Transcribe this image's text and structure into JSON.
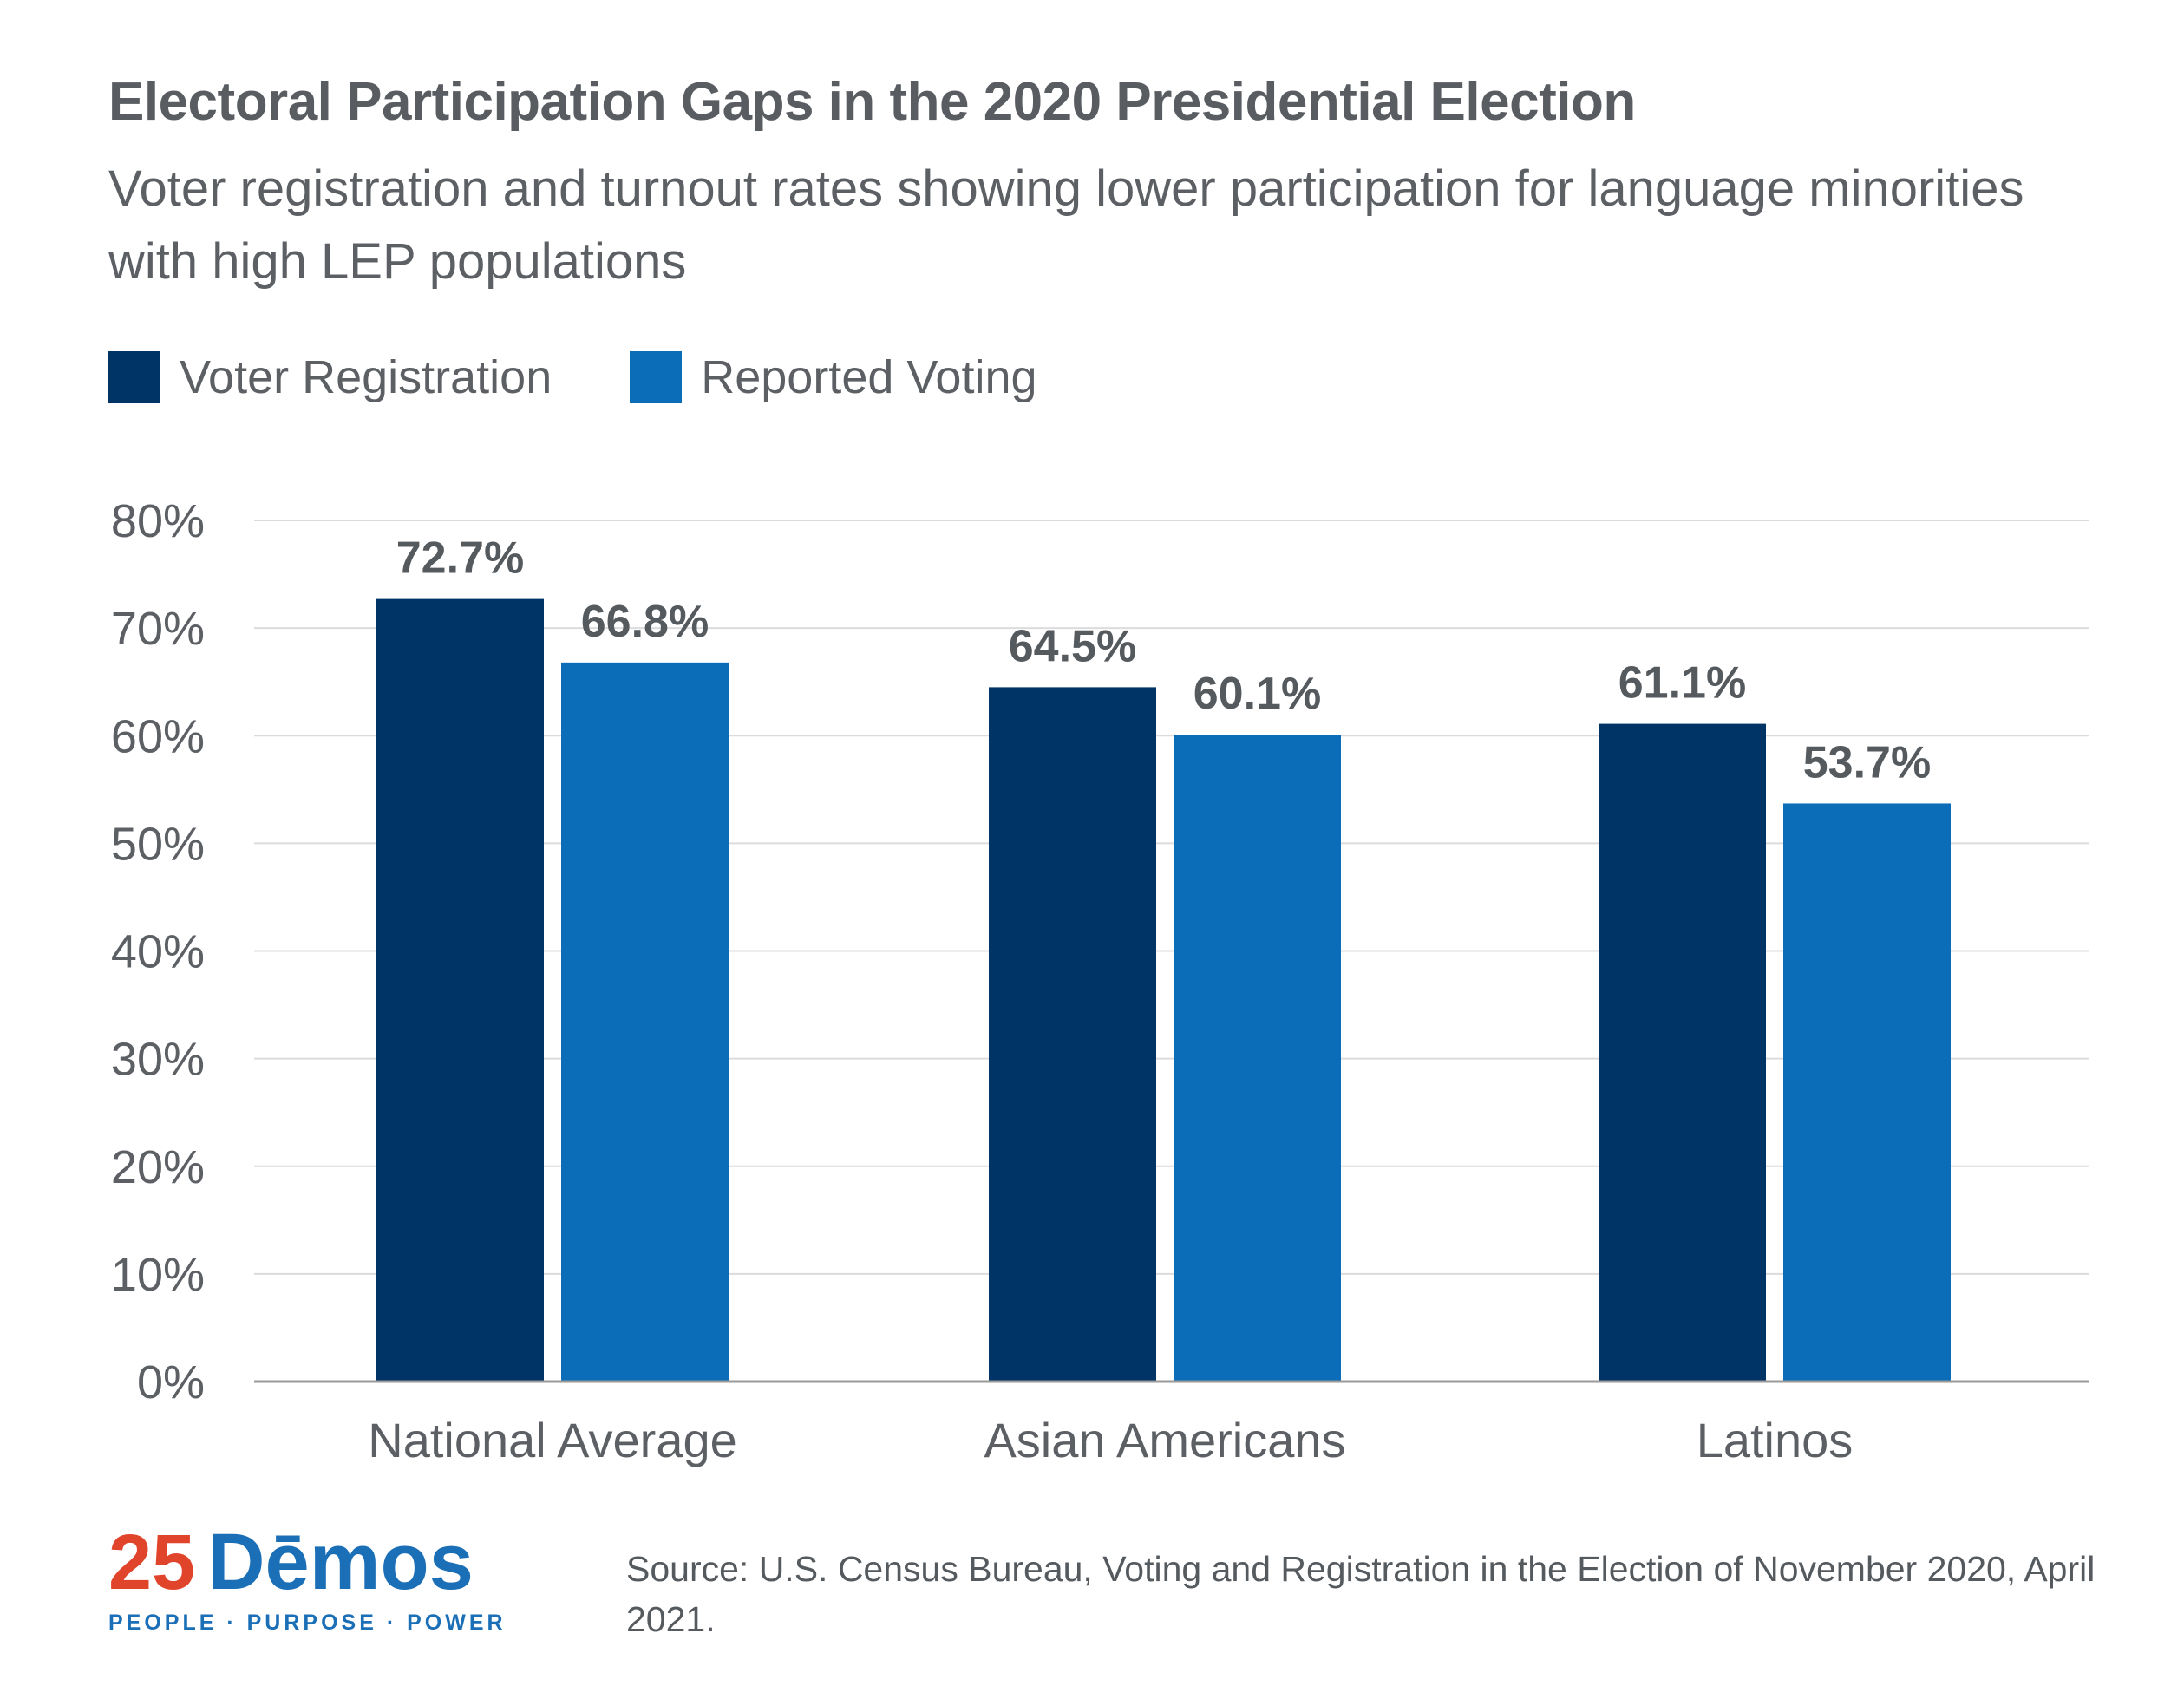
{
  "title": "Electoral Participation Gaps in the 2020 Presidential Election",
  "subtitle": "Voter registration and turnout rates showing lower participation for language minorities with high LEP populations",
  "source": "Source: U.S. Census Bureau, Voting and Registration in the Election of November 2020, April 2021.",
  "logo": {
    "number": "25",
    "word": "Dēmos",
    "tagline": "PEOPLE · PURPOSE · POWER"
  },
  "chart_data": {
    "type": "bar",
    "categories": [
      "National Average",
      "Asian Americans",
      "Latinos"
    ],
    "series": [
      {
        "name": "Voter Registration",
        "color": "#003466",
        "values": [
          72.7,
          64.5,
          61.1
        ],
        "labels": [
          "72.7%",
          "64.5%",
          "61.1%"
        ]
      },
      {
        "name": "Reported Voting",
        "color": "#0b6db7",
        "values": [
          66.8,
          60.1,
          53.7
        ],
        "labels": [
          "66.8%",
          "60.1%",
          "53.7%"
        ]
      }
    ],
    "ylim": [
      0,
      80
    ],
    "yticks": [
      "0%",
      "10%",
      "20%",
      "30%",
      "40%",
      "50%",
      "60%",
      "70%",
      "80%"
    ],
    "grid": true,
    "legend": "top-left"
  }
}
